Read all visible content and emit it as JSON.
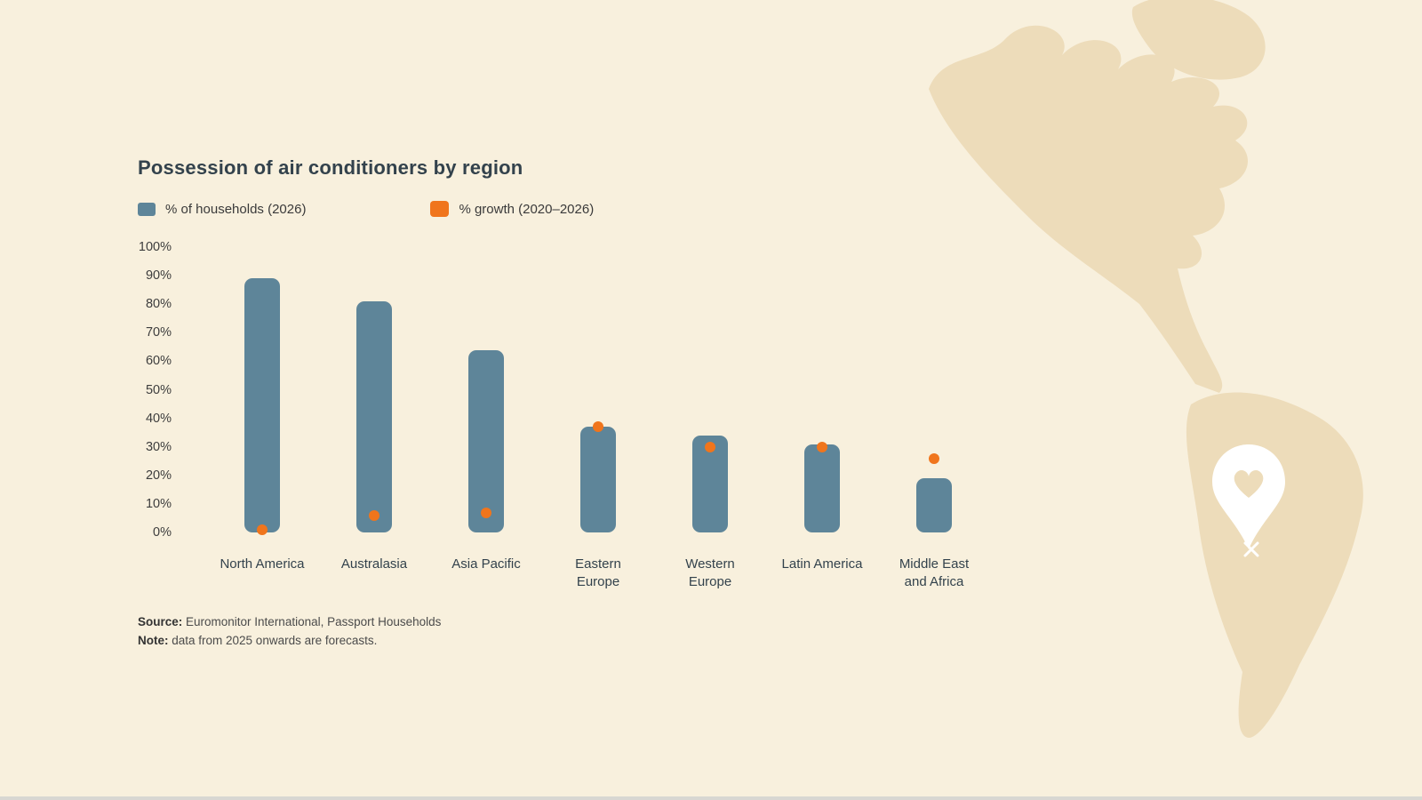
{
  "page": {
    "background": "#f8f0dd",
    "bottom_edge_color": "#d8d7d2"
  },
  "chart": {
    "source_label": "Source:",
    "source_text": " Euromonitor International, Passport Households",
    "note_label": "Note:",
    "note_text": " data from 2025 onwards are forecasts."
  },
  "chart_data": {
    "type": "bar",
    "title": "Possession of air conditioners by region",
    "categories": [
      "North America",
      "Australasia",
      "Asia Pacific",
      "Eastern Europe",
      "Western Europe",
      "Latin America",
      "Middle East and Africa"
    ],
    "categories_display": [
      "North America",
      "Australasia",
      "Asia Pacific",
      "Eastern\nEurope",
      "Western\nEurope",
      "Latin America",
      "Middle East\nand Africa"
    ],
    "series": [
      {
        "name": "% of households (2026)",
        "type": "bar",
        "color": "#5e8599",
        "values": [
          89,
          81,
          64,
          37,
          34,
          31,
          19
        ]
      },
      {
        "name": "% growth (2020–2026)",
        "type": "point",
        "color": "#f0751c",
        "values": [
          1,
          6,
          7,
          37,
          30,
          30,
          26
        ]
      }
    ],
    "ylim": [
      0,
      100
    ],
    "ytick_step": 10,
    "ytick_labels": [
      "0%",
      "10%",
      "20%",
      "30%",
      "40%",
      "50%",
      "60%",
      "70%",
      "80%",
      "90%",
      "100%"
    ],
    "grid": false,
    "legend_position": "top-left"
  },
  "map": {
    "label": "americas-map-silhouette",
    "color": "#eddcba",
    "pin_color": "#ffffff"
  }
}
